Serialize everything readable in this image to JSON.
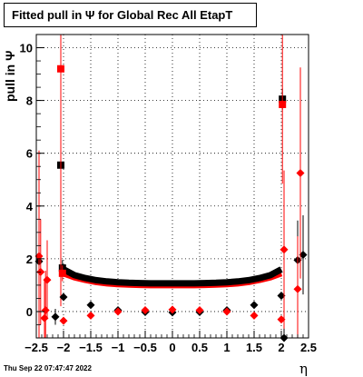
{
  "title": "Fitted pull in  Ψ  for Global Rec All EtapT",
  "timestamp": "Thu Sep 22 07:47:47 2022",
  "colors": {
    "black_series": "#000000",
    "red_series": "#ff0000",
    "grid": "#000000",
    "frame": "#000000"
  },
  "chart_data": {
    "type": "scatter",
    "title": "Fitted pull in  Ψ  for Global Rec All EtapT",
    "xlabel": "η",
    "ylabel": "pull in  Ψ",
    "xlim": [
      -2.5,
      2.5
    ],
    "ylim": [
      -1.0,
      10.5
    ],
    "x_ticks": [
      -2.5,
      -2,
      -1.5,
      -1,
      -0.5,
      0,
      0.5,
      1,
      1.5,
      2,
      2.5
    ],
    "x_tick_labels": [
      "−2.5",
      "−2",
      "−1.5",
      "−1",
      "−0.5",
      "0",
      "0.5",
      "1",
      "1.5",
      "2",
      "2.5"
    ],
    "y_ticks": [
      0,
      2,
      4,
      6,
      8,
      10
    ],
    "y_tick_labels": [
      "0",
      "2",
      "4",
      "6",
      "8",
      "10"
    ],
    "grid": true,
    "series": [
      {
        "marker": "square",
        "color": "#000000",
        "points": [
          [
            -2.05,
            5.55
          ],
          [
            -2.02,
            1.65
          ],
          [
            2.02,
            8.05
          ]
        ],
        "errors": [
          1.0,
          0.3,
          0.4
        ]
      },
      {
        "marker": "square",
        "color": "#ff0000",
        "points": [
          [
            -2.05,
            9.2
          ],
          [
            -2.02,
            1.45
          ],
          [
            2.02,
            7.85
          ]
        ],
        "errors": [
          9.0,
          0.3,
          3.0
        ]
      },
      {
        "marker": "diamond",
        "color": "#000000",
        "points": [
          [
            -2.45,
            1.9
          ],
          [
            -2.15,
            -0.2
          ],
          [
            -2.0,
            0.55
          ],
          [
            -1.5,
            0.25
          ],
          [
            -1.0,
            0.05
          ],
          [
            -0.5,
            -0.02
          ],
          [
            0.0,
            -0.03
          ],
          [
            0.5,
            -0.02
          ],
          [
            1.0,
            0.05
          ],
          [
            1.5,
            0.25
          ],
          [
            2.0,
            0.6
          ],
          [
            2.05,
            -1.0
          ],
          [
            2.3,
            1.95
          ],
          [
            2.4,
            2.15
          ]
        ],
        "errors": [
          1.5,
          0.3,
          0.05,
          0.03,
          0.02,
          0.02,
          0.02,
          0.02,
          0.02,
          0.03,
          0.05,
          0.5,
          1.5,
          1.5
        ]
      },
      {
        "marker": "diamond",
        "color": "#ff0000",
        "points": [
          [
            -2.45,
            2.1
          ],
          [
            -2.42,
            1.5
          ],
          [
            -2.35,
            -0.25
          ],
          [
            -2.33,
            0.05
          ],
          [
            -2.3,
            1.2
          ],
          [
            -2.0,
            -0.35
          ],
          [
            -1.5,
            -0.15
          ],
          [
            -1.0,
            0.0
          ],
          [
            -0.5,
            0.05
          ],
          [
            0.0,
            0.07
          ],
          [
            0.5,
            0.05
          ],
          [
            1.0,
            0.0
          ],
          [
            1.5,
            -0.15
          ],
          [
            2.0,
            -0.3
          ],
          [
            2.05,
            2.35
          ],
          [
            2.3,
            0.85
          ],
          [
            2.35,
            5.25
          ]
        ],
        "errors": [
          4.0,
          2.0,
          1.5,
          1.5,
          1.5,
          0.05,
          0.03,
          0.02,
          0.02,
          0.02,
          0.02,
          0.02,
          0.03,
          0.05,
          3.0,
          2.0,
          4.0
        ]
      },
      {
        "marker": "band",
        "color": "#ff0000",
        "name": "",
        "x": [
          -2.0,
          -1.8,
          -1.6,
          -1.4,
          -1.2,
          -1.0,
          -0.8,
          -0.6,
          -0.4,
          -0.2,
          0.0,
          0.2,
          0.4,
          0.6,
          0.8,
          1.0,
          1.2,
          1.4,
          1.6,
          1.8,
          2.0
        ],
        "values": [
          1.45,
          1.3,
          1.2,
          1.12,
          1.07,
          1.04,
          1.02,
          1.01,
          1.0,
          1.0,
          1.0,
          1.0,
          1.0,
          1.01,
          1.02,
          1.04,
          1.07,
          1.12,
          1.2,
          1.3,
          1.45
        ]
      },
      {
        "marker": "band",
        "color": "#000000",
        "name": "",
        "x": [
          -2.0,
          -1.8,
          -1.6,
          -1.4,
          -1.2,
          -1.0,
          -0.8,
          -0.6,
          -0.4,
          -0.2,
          0.0,
          0.2,
          0.4,
          0.6,
          0.8,
          1.0,
          1.2,
          1.4,
          1.6,
          1.8,
          2.0
        ],
        "values": [
          1.6,
          1.38,
          1.27,
          1.19,
          1.14,
          1.11,
          1.09,
          1.08,
          1.07,
          1.07,
          1.07,
          1.07,
          1.07,
          1.08,
          1.09,
          1.11,
          1.14,
          1.19,
          1.27,
          1.38,
          1.6
        ]
      }
    ]
  }
}
